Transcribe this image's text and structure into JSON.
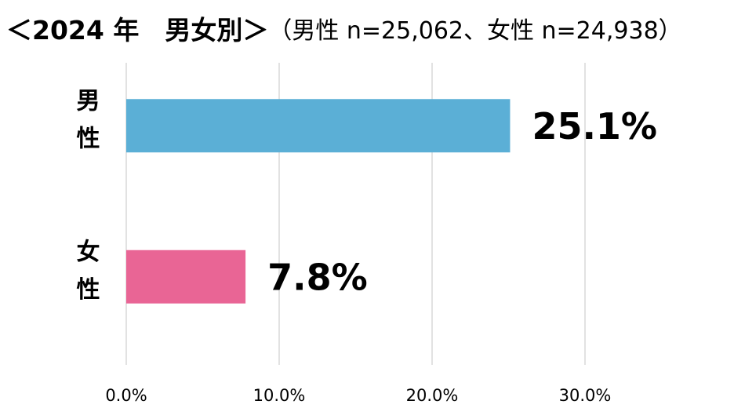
{
  "chart_data": {
    "type": "bar",
    "orientation": "horizontal",
    "title": "＜2024 年　男女別＞",
    "subtitle": "（男性 n=25,062、女性 n=24,938）",
    "categories": [
      "男性",
      "女性"
    ],
    "values": [
      25.1,
      7.8
    ],
    "value_labels": [
      "25.1%",
      "7.8%"
    ],
    "colors": [
      "#5bafd6",
      "#e96595"
    ],
    "xlim": [
      0,
      30
    ],
    "xticks": [
      {
        "value": 0,
        "label": "0.0%"
      },
      {
        "value": 10,
        "label": "10.0%"
      },
      {
        "value": 20,
        "label": "20.0%"
      },
      {
        "value": 30,
        "label": "30.0%"
      }
    ],
    "grid": true
  }
}
